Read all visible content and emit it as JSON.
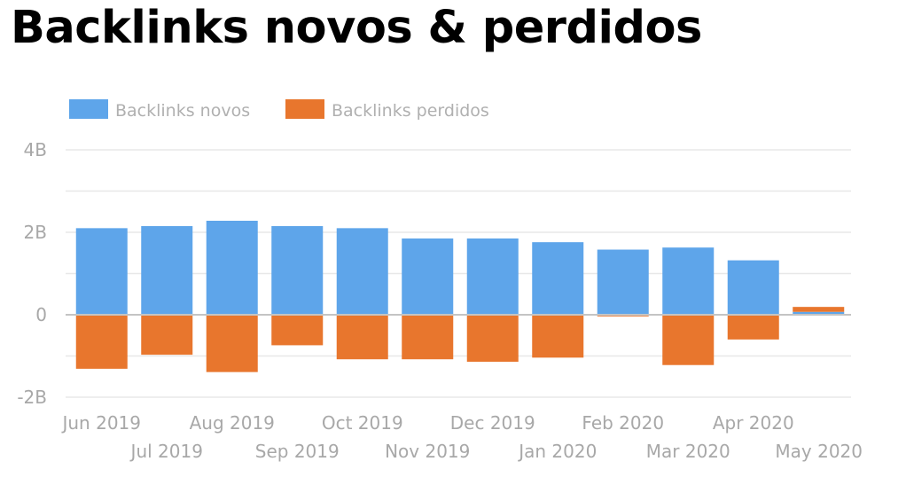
{
  "title": "Backlinks novos & perdidos",
  "chart_data": {
    "type": "bar",
    "stacked": true,
    "title": "Backlinks novos & perdidos",
    "categories": [
      "Jun 2019",
      "Jul 2019",
      "Aug 2019",
      "Sep 2019",
      "Oct 2019",
      "Nov 2019",
      "Dec 2019",
      "Jan 2020",
      "Feb 2020",
      "Mar 2020",
      "Apr 2020",
      "May 2020"
    ],
    "series": [
      {
        "name": "Backlinks novos",
        "color": "#5ea5ea",
        "values": [
          2.1,
          2.15,
          2.28,
          2.15,
          2.1,
          1.85,
          1.85,
          1.76,
          1.58,
          1.63,
          1.32,
          0.07
        ]
      },
      {
        "name": "Backlinks perdidos",
        "color": "#e8762d",
        "values": [
          -1.31,
          -0.97,
          -1.39,
          -0.74,
          -1.08,
          -1.08,
          -1.14,
          -1.04,
          -0.04,
          -1.22,
          -0.6,
          0.12
        ]
      }
    ],
    "yticks": [
      {
        "value": 4,
        "label": "4B"
      },
      {
        "value": 2,
        "label": "2B"
      },
      {
        "value": 0,
        "label": "0"
      },
      {
        "value": -2,
        "label": "-2B"
      }
    ],
    "ylim": [
      -2,
      4
    ],
    "grid": true,
    "legend_position": "top-left",
    "xlabel": "",
    "ylabel": ""
  }
}
